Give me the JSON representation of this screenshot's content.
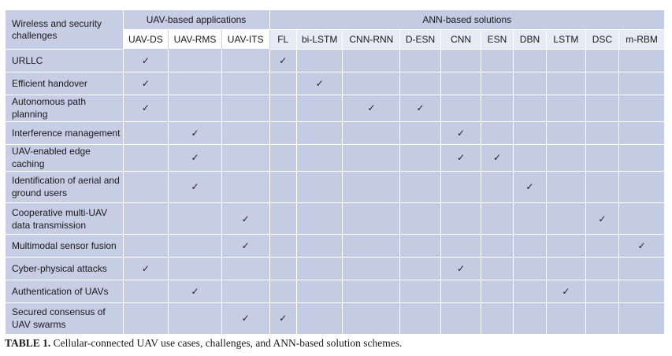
{
  "table": {
    "corner_label": "Wireless and security challenges",
    "group_uav": "UAV-based applications",
    "group_ann": "ANN-based solutions",
    "uav_columns": [
      "UAV-DS",
      "UAV-RMS",
      "UAV-ITS"
    ],
    "ann_columns": [
      "FL",
      "bi-LSTM",
      "CNN-RNN",
      "D-ESN",
      "CNN",
      "ESN",
      "DBN",
      "LSTM",
      "DSC",
      "m-RBM"
    ],
    "check_glyph": "✓",
    "rows": [
      {
        "label": "URLLC",
        "uav": [
          1,
          0,
          0
        ],
        "ann": [
          1,
          0,
          0,
          0,
          0,
          0,
          0,
          0,
          0,
          0
        ]
      },
      {
        "label": "Efficient handover",
        "uav": [
          1,
          0,
          0
        ],
        "ann": [
          0,
          1,
          0,
          0,
          0,
          0,
          0,
          0,
          0,
          0
        ]
      },
      {
        "label": "Autonomous path planning",
        "uav": [
          1,
          0,
          0
        ],
        "ann": [
          0,
          0,
          1,
          1,
          0,
          0,
          0,
          0,
          0,
          0
        ]
      },
      {
        "label": "Interference management",
        "uav": [
          0,
          1,
          0
        ],
        "ann": [
          0,
          0,
          0,
          0,
          1,
          0,
          0,
          0,
          0,
          0
        ]
      },
      {
        "label": "UAV-enabled edge caching",
        "uav": [
          0,
          1,
          0
        ],
        "ann": [
          0,
          0,
          0,
          0,
          1,
          1,
          0,
          0,
          0,
          0
        ]
      },
      {
        "label": "Identification of aerial and ground users",
        "uav": [
          0,
          1,
          0
        ],
        "ann": [
          0,
          0,
          0,
          0,
          0,
          0,
          1,
          0,
          0,
          0
        ]
      },
      {
        "label": "Cooperative multi-UAV data transmission",
        "uav": [
          0,
          0,
          1
        ],
        "ann": [
          0,
          0,
          0,
          0,
          0,
          0,
          0,
          0,
          1,
          0
        ]
      },
      {
        "label": "Multimodal sensor fusion",
        "uav": [
          0,
          0,
          1
        ],
        "ann": [
          0,
          0,
          0,
          0,
          0,
          0,
          0,
          0,
          0,
          1
        ]
      },
      {
        "label": "Cyber-physical attacks",
        "uav": [
          1,
          0,
          0
        ],
        "ann": [
          0,
          0,
          0,
          0,
          1,
          0,
          0,
          0,
          0,
          0
        ]
      },
      {
        "label": "Authentication of UAVs",
        "uav": [
          0,
          1,
          0
        ],
        "ann": [
          0,
          0,
          0,
          0,
          0,
          0,
          0,
          1,
          0,
          0
        ]
      },
      {
        "label": "Secured consensus of UAV swarms",
        "uav": [
          0,
          0,
          1
        ],
        "ann": [
          1,
          0,
          0,
          0,
          0,
          0,
          0,
          0,
          0,
          0
        ]
      }
    ]
  },
  "caption": {
    "label": "TABLE 1.",
    "text": " Cellular-connected UAV use cases, challenges, and ANN-based solution schemes."
  },
  "colors": {
    "uav_band": "#c6cde4",
    "ann_band": "#c3cce3",
    "ann_subheader": "#e7ebf5"
  }
}
